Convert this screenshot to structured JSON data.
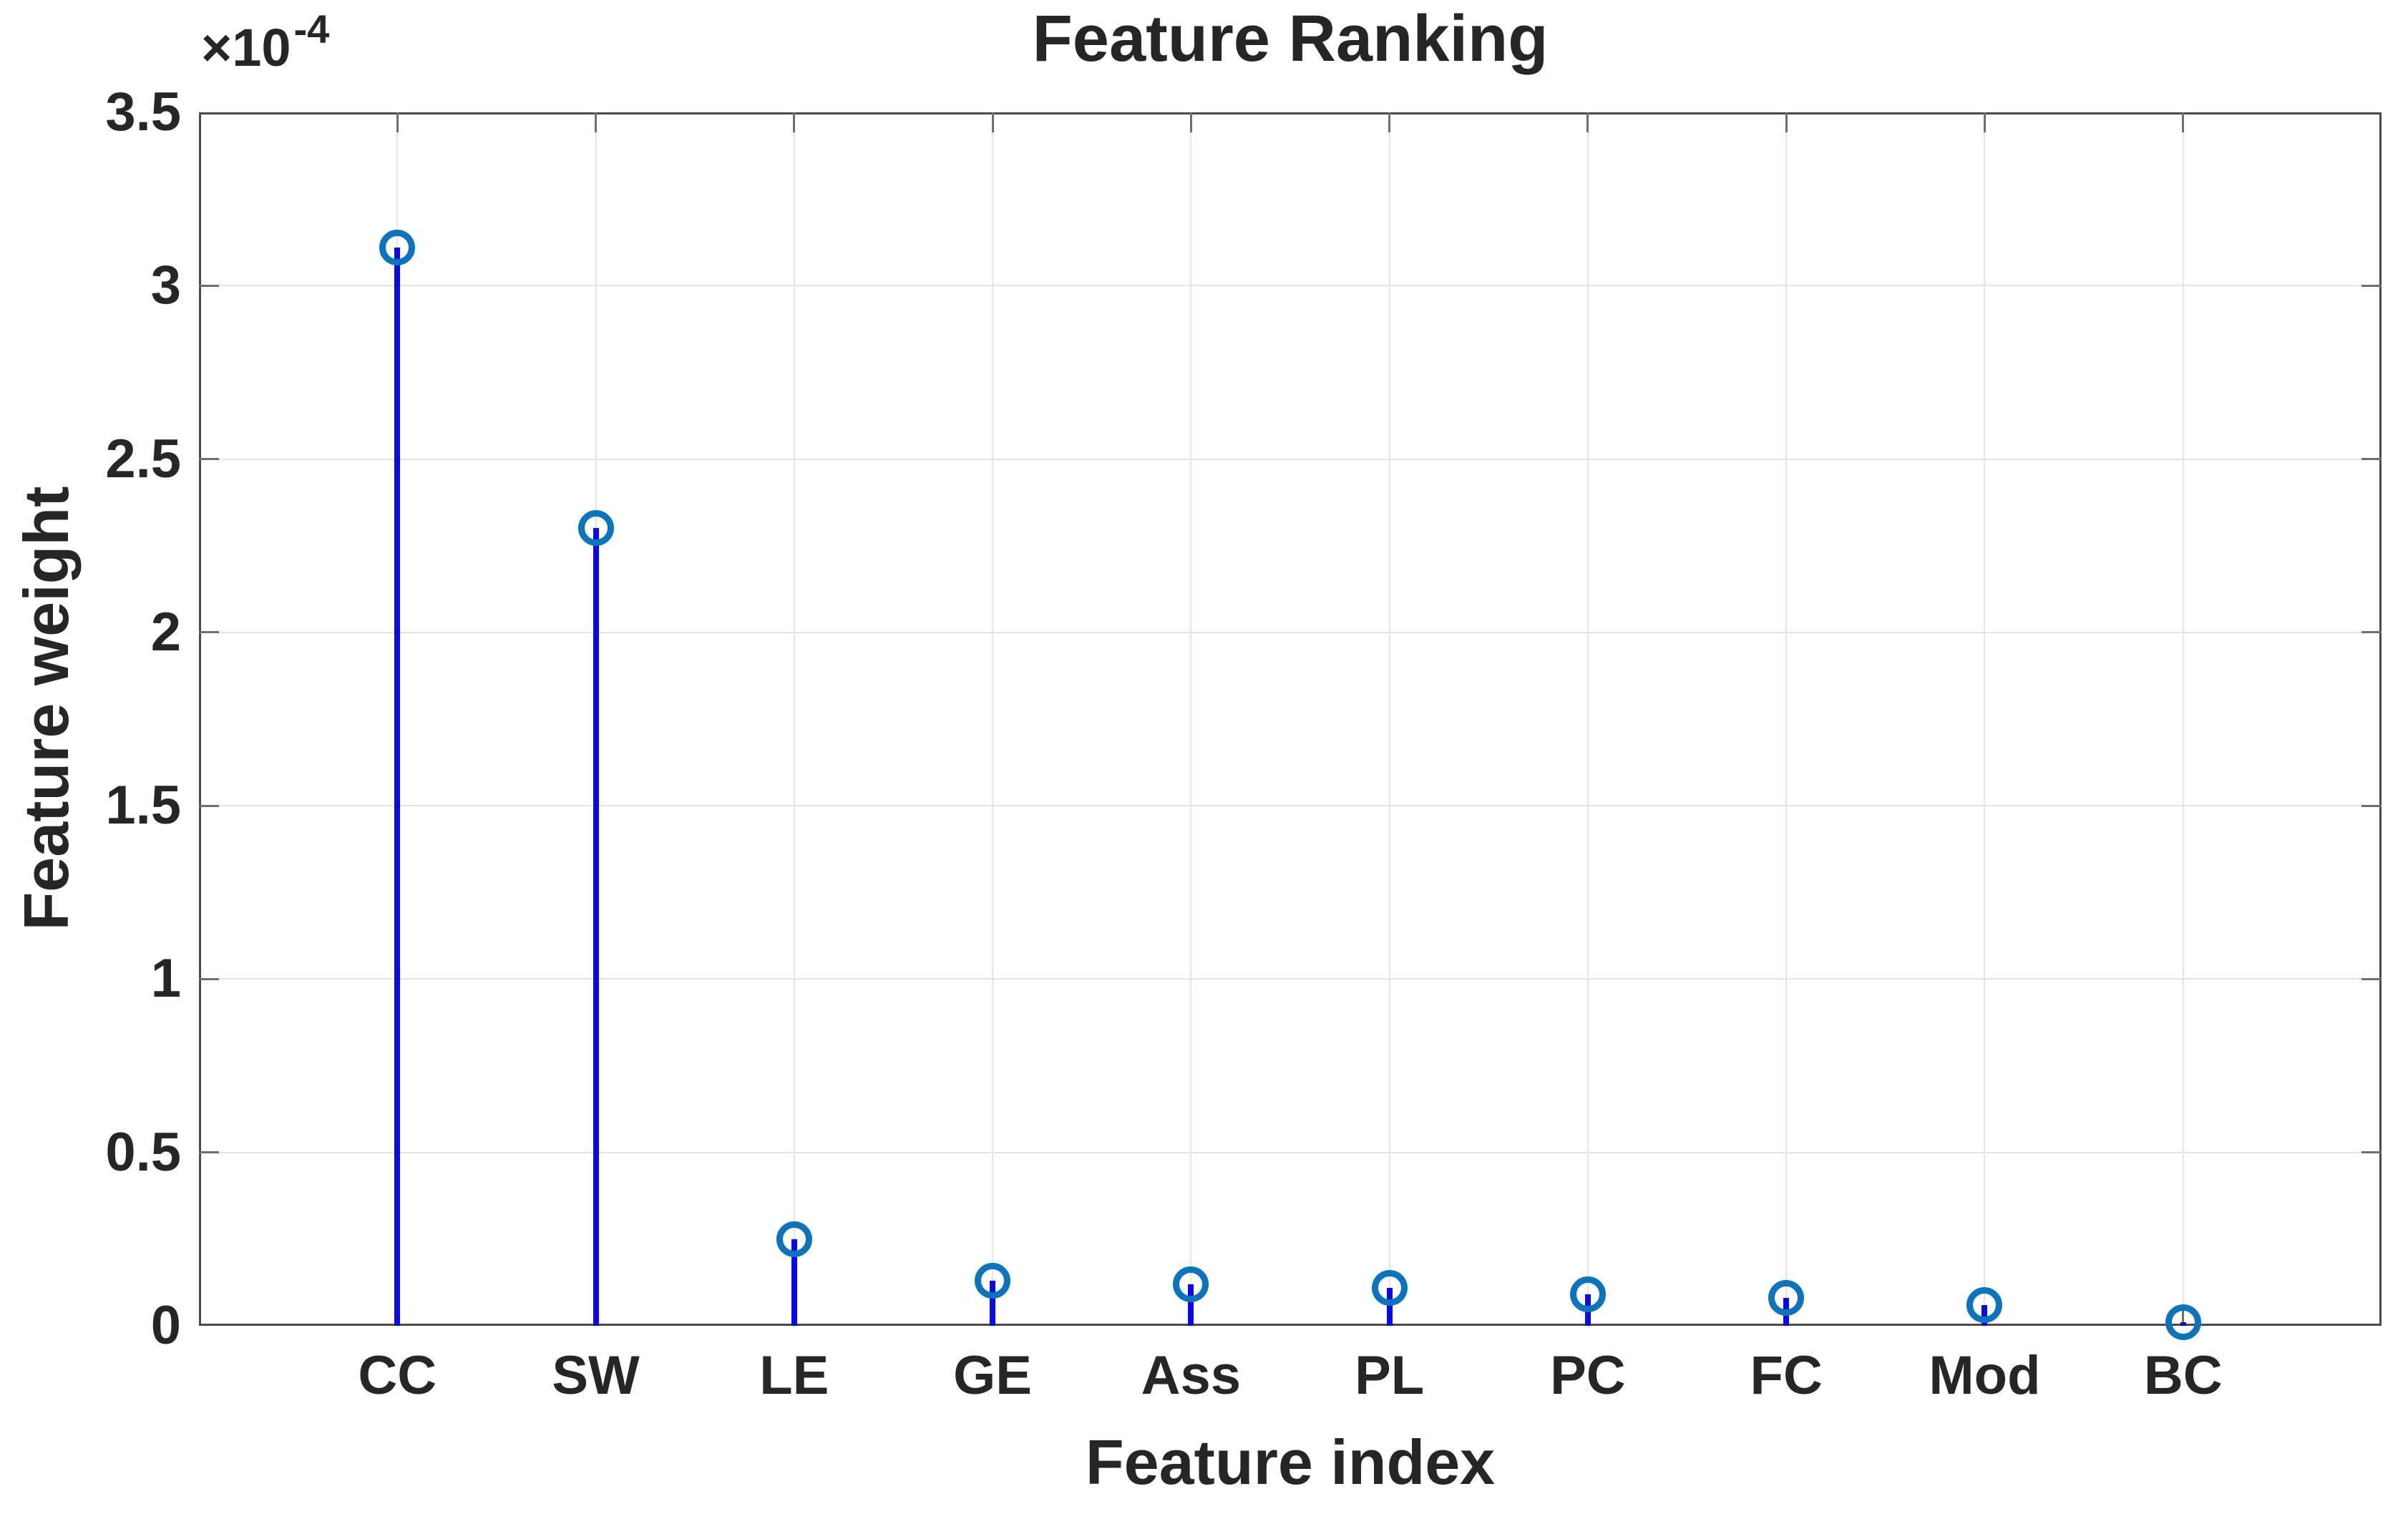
{
  "chart_data": {
    "type": "stem",
    "title": "Feature Ranking",
    "xlabel": "Feature index",
    "ylabel": "Feature weight",
    "y_exponent_base": "×10",
    "y_exponent_power": "-4",
    "categories": [
      "CC",
      "SW",
      "LE",
      "GE",
      "Ass",
      "PL",
      "PC",
      "FC",
      "Mod",
      "BC"
    ],
    "values_e4": [
      3.11,
      2.3,
      0.25,
      0.13,
      0.12,
      0.11,
      0.09,
      0.08,
      0.06,
      0.01
    ],
    "values_note": "feature weights in units of 1e-4; e.g. CC = 3.11e-4",
    "ylim_e4": [
      0,
      3.5
    ],
    "y_tick_values_e4": [
      0,
      0.5,
      1,
      1.5,
      2,
      2.5,
      3,
      3.5
    ],
    "y_tick_labels": [
      "0",
      "0.5",
      "1",
      "1.5",
      "2",
      "2.5",
      "3",
      "3.5"
    ],
    "grid": true,
    "legend": null,
    "colors": {
      "stem": "#0A0AE8",
      "marker": "#0C74BD",
      "axis": "#4A4A4A",
      "tick": "#6E6E6E",
      "grid": "#E3E3E3",
      "text": "#262626"
    }
  }
}
